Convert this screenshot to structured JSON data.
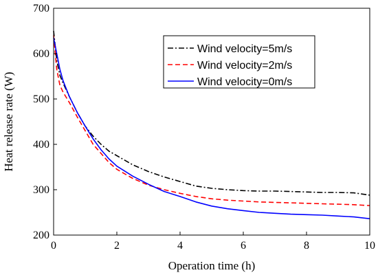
{
  "chart_data": {
    "type": "line",
    "title": "",
    "xlabel": "Operation time (h)",
    "ylabel": "Heat release rate (W)",
    "xlim": [
      0,
      10
    ],
    "ylim": [
      200,
      700
    ],
    "xticks": [
      0,
      2,
      4,
      6,
      8,
      10
    ],
    "yticks": [
      200,
      300,
      400,
      500,
      600,
      700
    ],
    "grid": false,
    "legend_position": "top-right",
    "series": [
      {
        "name": "Wind velocity=5m/s",
        "color": "#000000",
        "dash": "dash-dot",
        "x": [
          0,
          0.1,
          0.2,
          0.3,
          0.5,
          0.75,
          1.0,
          1.25,
          1.5,
          1.75,
          2.0,
          2.5,
          3.0,
          3.5,
          4.0,
          4.5,
          5.0,
          5.5,
          6.0,
          6.5,
          7.0,
          7.5,
          8.0,
          8.5,
          9.0,
          9.5,
          10.0
        ],
        "y": [
          650,
          585,
          552,
          535,
          505,
          470,
          440,
          418,
          400,
          385,
          375,
          355,
          340,
          328,
          318,
          308,
          303,
          300,
          298,
          297,
          297,
          296,
          295,
          294,
          294,
          293,
          288
        ]
      },
      {
        "name": "Wind velocity=2m/s",
        "color": "#ff0000",
        "dash": "dashed",
        "x": [
          0,
          0.1,
          0.2,
          0.3,
          0.5,
          0.75,
          1.0,
          1.25,
          1.5,
          1.75,
          2.0,
          2.5,
          3.0,
          3.5,
          4.0,
          4.5,
          5.0,
          5.5,
          6.0,
          6.5,
          7.0,
          7.5,
          8.0,
          8.5,
          9.0,
          9.5,
          10.0
        ],
        "y": [
          640,
          565,
          530,
          515,
          492,
          460,
          430,
          400,
          380,
          360,
          345,
          325,
          310,
          300,
          292,
          285,
          280,
          277,
          275,
          273,
          272,
          271,
          270,
          269,
          268,
          267,
          265
        ]
      },
      {
        "name": "Wind velocity=0m/s",
        "color": "#0000ff",
        "dash": "solid",
        "x": [
          0,
          0.1,
          0.2,
          0.3,
          0.5,
          0.75,
          1.0,
          1.25,
          1.5,
          1.75,
          2.0,
          2.5,
          3.0,
          3.5,
          4.0,
          4.5,
          5.0,
          5.5,
          6.0,
          6.5,
          7.0,
          7.5,
          8.0,
          8.5,
          9.0,
          9.5,
          10.0
        ],
        "y": [
          635,
          600,
          565,
          540,
          505,
          470,
          440,
          412,
          388,
          368,
          352,
          330,
          312,
          296,
          285,
          273,
          264,
          258,
          254,
          250,
          248,
          246,
          245,
          244,
          242,
          240,
          236
        ]
      }
    ]
  }
}
